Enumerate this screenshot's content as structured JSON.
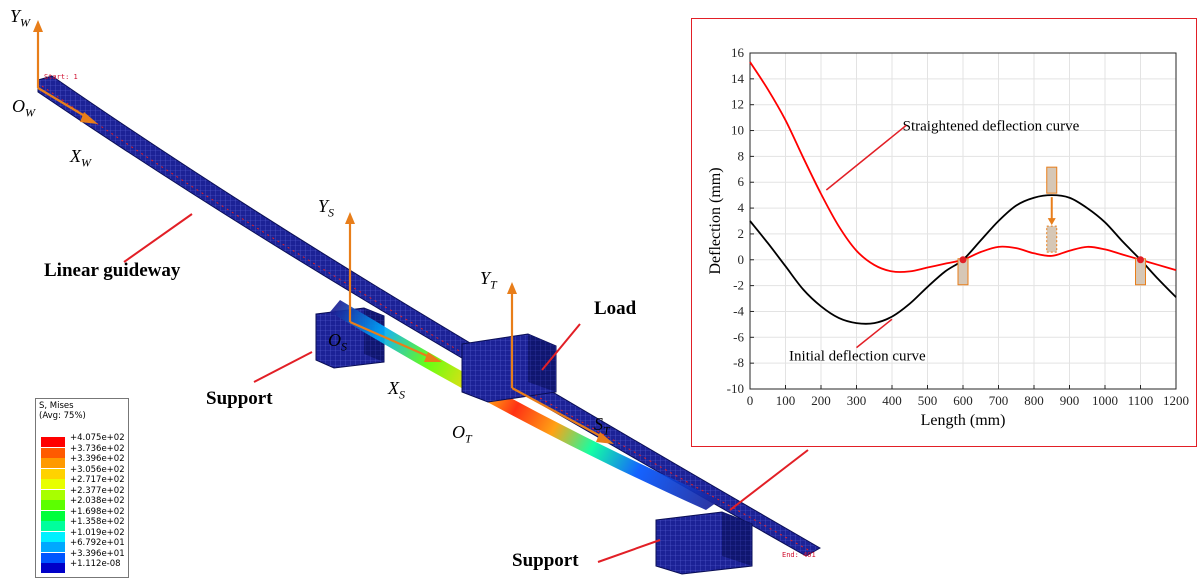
{
  "labels": {
    "yw": "Y",
    "yw_sub": "W",
    "ow": "O",
    "ow_sub": "W",
    "xw": "X",
    "xw_sub": "W",
    "ys": "Y",
    "ys_sub": "S",
    "os": "O",
    "os_sub": "S",
    "xs": "X",
    "xs_sub": "S",
    "yt": "Y",
    "yt_sub": "T",
    "ot": "O",
    "ot_sub": "T",
    "st": "S",
    "st_sub": "T",
    "linear_guideway": "Linear guideway",
    "load": "Load",
    "support_left": "Support",
    "support_bottom": "Support"
  },
  "fe_labels": {
    "start": "Start: 1",
    "end": "End: 401"
  },
  "legend": {
    "title1": "S, Mises",
    "title2": "(Avg: 75%)",
    "values": [
      "+4.075e+02",
      "+3.736e+02",
      "+3.396e+02",
      "+3.056e+02",
      "+2.717e+02",
      "+2.377e+02",
      "+2.038e+02",
      "+1.698e+02",
      "+1.358e+02",
      "+1.019e+02",
      "+6.792e+01",
      "+3.396e+01",
      "+1.112e-08"
    ],
    "colors": [
      "#ff0000",
      "#ff5a00",
      "#ff9a00",
      "#ffd200",
      "#e8ff00",
      "#a8ff00",
      "#5cff00",
      "#00ff3c",
      "#00ff9c",
      "#00f0ff",
      "#00a8ff",
      "#0055ff",
      "#0000c8"
    ]
  },
  "colors": {
    "accent_orange": "#e87e1a",
    "callout_red": "#e21f26",
    "mesh_blue": "#1c2296"
  },
  "chart_data": {
    "type": "line",
    "xlabel": "Length (mm)",
    "ylabel": "Deflection (mm)",
    "xlim": [
      0,
      1200
    ],
    "ylim": [
      -10,
      16
    ],
    "xticks": [
      0,
      100,
      200,
      300,
      400,
      500,
      600,
      700,
      800,
      900,
      1000,
      1100,
      1200
    ],
    "yticks": [
      -10,
      -8,
      -6,
      -4,
      -2,
      0,
      2,
      4,
      6,
      8,
      10,
      12,
      14,
      16
    ],
    "grid": true,
    "series": [
      {
        "name": "Straightened deflection curve",
        "color": "#ff0000",
        "x": [
          0,
          50,
          100,
          150,
          200,
          250,
          300,
          350,
          400,
          450,
          500,
          550,
          600,
          650,
          700,
          750,
          800,
          850,
          900,
          950,
          1000,
          1050,
          1100,
          1150,
          1200
        ],
        "y": [
          15.3,
          13.2,
          10.8,
          7.9,
          5.1,
          2.6,
          0.7,
          -0.4,
          -0.9,
          -0.9,
          -0.6,
          -0.3,
          0.0,
          0.6,
          1.0,
          0.9,
          0.5,
          0.3,
          0.7,
          1.0,
          0.8,
          0.4,
          0.0,
          -0.4,
          -0.8
        ]
      },
      {
        "name": "Initial deflection curve",
        "color": "#000000",
        "x": [
          0,
          50,
          100,
          150,
          200,
          250,
          300,
          350,
          400,
          450,
          500,
          550,
          600,
          650,
          700,
          750,
          800,
          850,
          900,
          950,
          1000,
          1050,
          1100,
          1150,
          1200
        ],
        "y": [
          3.0,
          1.3,
          -0.5,
          -2.3,
          -3.6,
          -4.5,
          -4.9,
          -4.9,
          -4.4,
          -3.4,
          -2.1,
          -0.9,
          0.0,
          1.5,
          3.0,
          4.2,
          4.8,
          5.0,
          4.8,
          4.0,
          2.9,
          1.4,
          0.0,
          -1.5,
          -2.9
        ]
      }
    ],
    "support_points": [
      {
        "x": 600,
        "y": 0
      },
      {
        "x": 1100,
        "y": 0
      }
    ],
    "annotations": [
      "Straightened deflection curve",
      "Initial deflection curve"
    ]
  }
}
